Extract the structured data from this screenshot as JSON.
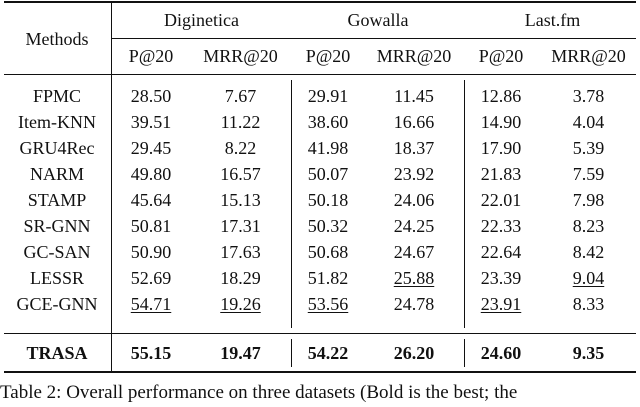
{
  "table": {
    "methods_header": "Methods",
    "datasets": [
      "Diginetica",
      "Gowalla",
      "Last.fm"
    ],
    "metrics": [
      "P@20",
      "MRR@20",
      "P@20",
      "MRR@20",
      "P@20",
      "MRR@20"
    ],
    "rows": [
      {
        "method": "FPMC",
        "values": [
          "28.50",
          "7.67",
          "29.91",
          "11.45",
          "12.86",
          "3.78"
        ],
        "underline": [],
        "bold": false
      },
      {
        "method": "Item-KNN",
        "values": [
          "39.51",
          "11.22",
          "38.60",
          "16.66",
          "14.90",
          "4.04"
        ],
        "underline": [],
        "bold": false
      },
      {
        "method": "GRU4Rec",
        "values": [
          "29.45",
          "8.22",
          "41.98",
          "18.37",
          "17.90",
          "5.39"
        ],
        "underline": [],
        "bold": false
      },
      {
        "method": "NARM",
        "values": [
          "49.80",
          "16.57",
          "50.07",
          "23.92",
          "21.83",
          "7.59"
        ],
        "underline": [],
        "bold": false
      },
      {
        "method": "STAMP",
        "values": [
          "45.64",
          "15.13",
          "50.18",
          "24.06",
          "22.01",
          "7.98"
        ],
        "underline": [],
        "bold": false
      },
      {
        "method": "SR-GNN",
        "values": [
          "50.81",
          "17.31",
          "50.32",
          "24.25",
          "22.33",
          "8.23"
        ],
        "underline": [],
        "bold": false
      },
      {
        "method": "GC-SAN",
        "values": [
          "50.90",
          "17.63",
          "50.68",
          "24.67",
          "22.64",
          "8.42"
        ],
        "underline": [],
        "bold": false
      },
      {
        "method": "LESSR",
        "values": [
          "52.69",
          "18.29",
          "51.82",
          "25.88",
          "23.39",
          "9.04"
        ],
        "underline": [
          3,
          5
        ],
        "bold": false
      },
      {
        "method": "GCE-GNN",
        "values": [
          "54.71",
          "19.26",
          "53.56",
          "24.78",
          "23.91",
          "8.33"
        ],
        "underline": [
          0,
          1,
          2,
          4
        ],
        "bold": false
      },
      {
        "method": "TRASA",
        "values": [
          "55.15",
          "19.47",
          "54.22",
          "26.20",
          "24.60",
          "9.35"
        ],
        "underline": [],
        "bold": true
      }
    ]
  },
  "caption": "Table 2: Overall performance on three datasets (Bold is the best; the"
}
